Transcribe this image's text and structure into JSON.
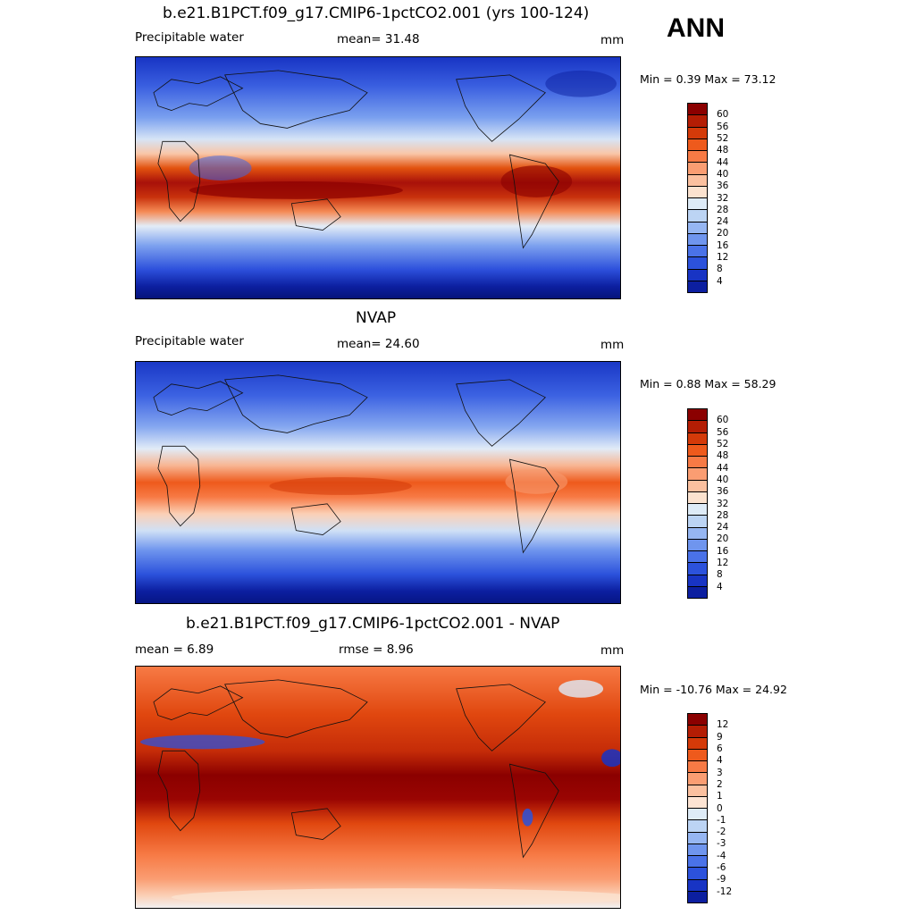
{
  "season": "ANN",
  "panels": [
    {
      "title": "b.e21.B1PCT.f09_g17.CMIP6-1pctCO2.001 (yrs 100-124)",
      "left_label": "Precipitable water",
      "center_label": "mean=  31.48",
      "unit": "mm",
      "minmax": "Min =   0.39 Max =  73.12",
      "levels": [
        "60",
        "56",
        "52",
        "48",
        "44",
        "40",
        "36",
        "32",
        "28",
        "24",
        "20",
        "16",
        "12",
        "8",
        "4"
      ],
      "colors": [
        "#8b0000",
        "#b41d04",
        "#d43a09",
        "#ee5a1c",
        "#f77a45",
        "#fa9d72",
        "#fbc09f",
        "#fbe2cf",
        "#deebf7",
        "#bcd4f4",
        "#96b6f2",
        "#6f95ee",
        "#4a72e8",
        "#2c52dc",
        "#1834c4",
        "#0c1fa0"
      ]
    },
    {
      "title": "NVAP",
      "left_label": "Precipitable water",
      "center_label": "mean=  24.60",
      "unit": "mm",
      "minmax": "Min =   0.88 Max =  58.29",
      "levels": [
        "60",
        "56",
        "52",
        "48",
        "44",
        "40",
        "36",
        "32",
        "28",
        "24",
        "20",
        "16",
        "12",
        "8",
        "4"
      ],
      "colors": [
        "#8b0000",
        "#b41d04",
        "#d43a09",
        "#ee5a1c",
        "#f77a45",
        "#fa9d72",
        "#fbc09f",
        "#fbe2cf",
        "#deebf7",
        "#bcd4f4",
        "#96b6f2",
        "#6f95ee",
        "#4a72e8",
        "#2c52dc",
        "#1834c4",
        "#0c1fa0"
      ]
    },
    {
      "title": "b.e21.B1PCT.f09_g17.CMIP6-1pctCO2.001 - NVAP",
      "left_label": "mean =    6.89",
      "center_label": "rmse =    8.96",
      "unit": "mm",
      "minmax": "Min = -10.76 Max =  24.92",
      "levels": [
        "12",
        "9",
        "6",
        "4",
        "3",
        "2",
        "1",
        "0",
        "-1",
        "-2",
        "-3",
        "-4",
        "-6",
        "-9",
        "-12"
      ],
      "colors": [
        "#8b0000",
        "#b41d04",
        "#d43a09",
        "#ee5a1c",
        "#f77a45",
        "#fa9d72",
        "#fbc09f",
        "#fde4d3",
        "#deebf7",
        "#bcd4f4",
        "#96b6f2",
        "#6f95ee",
        "#4a72e8",
        "#2c52dc",
        "#1834c4",
        "#0c1fa0"
      ]
    }
  ]
}
